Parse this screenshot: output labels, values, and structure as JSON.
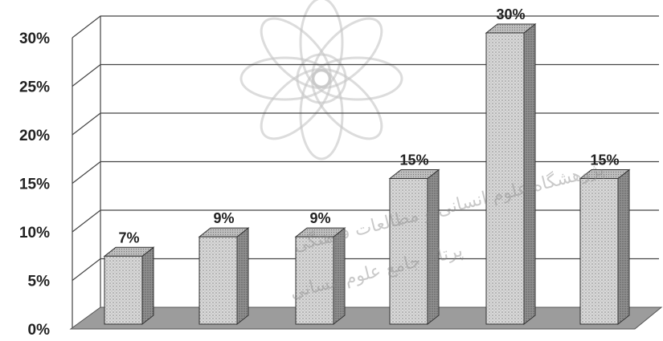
{
  "watermark": {
    "line1": "پژوهشگاه علوم انسانی و مطالعات فرهنگی",
    "line2": "پرتال جامع علوم انسانی"
  },
  "chart_data": {
    "type": "bar",
    "style": "3d",
    "values": [
      7,
      9,
      9,
      15,
      30,
      15
    ],
    "data_labels": [
      "7%",
      "9%",
      "9%",
      "15%",
      "30%",
      "15%"
    ],
    "yticks": [
      "0%",
      "5%",
      "10%",
      "15%",
      "20%",
      "25%",
      "30%"
    ],
    "ytick_values": [
      0,
      5,
      10,
      15,
      20,
      25,
      30
    ],
    "ylim": [
      0,
      30
    ],
    "grid": true,
    "legend": "none"
  },
  "colors": {
    "bar_front": "#d9d9d9",
    "bar_dots": "#8c8c8c",
    "bar_side": "#8f8f8f",
    "bar_top": "#bdbdbd",
    "floor": "#9c9c9c",
    "grid": "#444444"
  }
}
